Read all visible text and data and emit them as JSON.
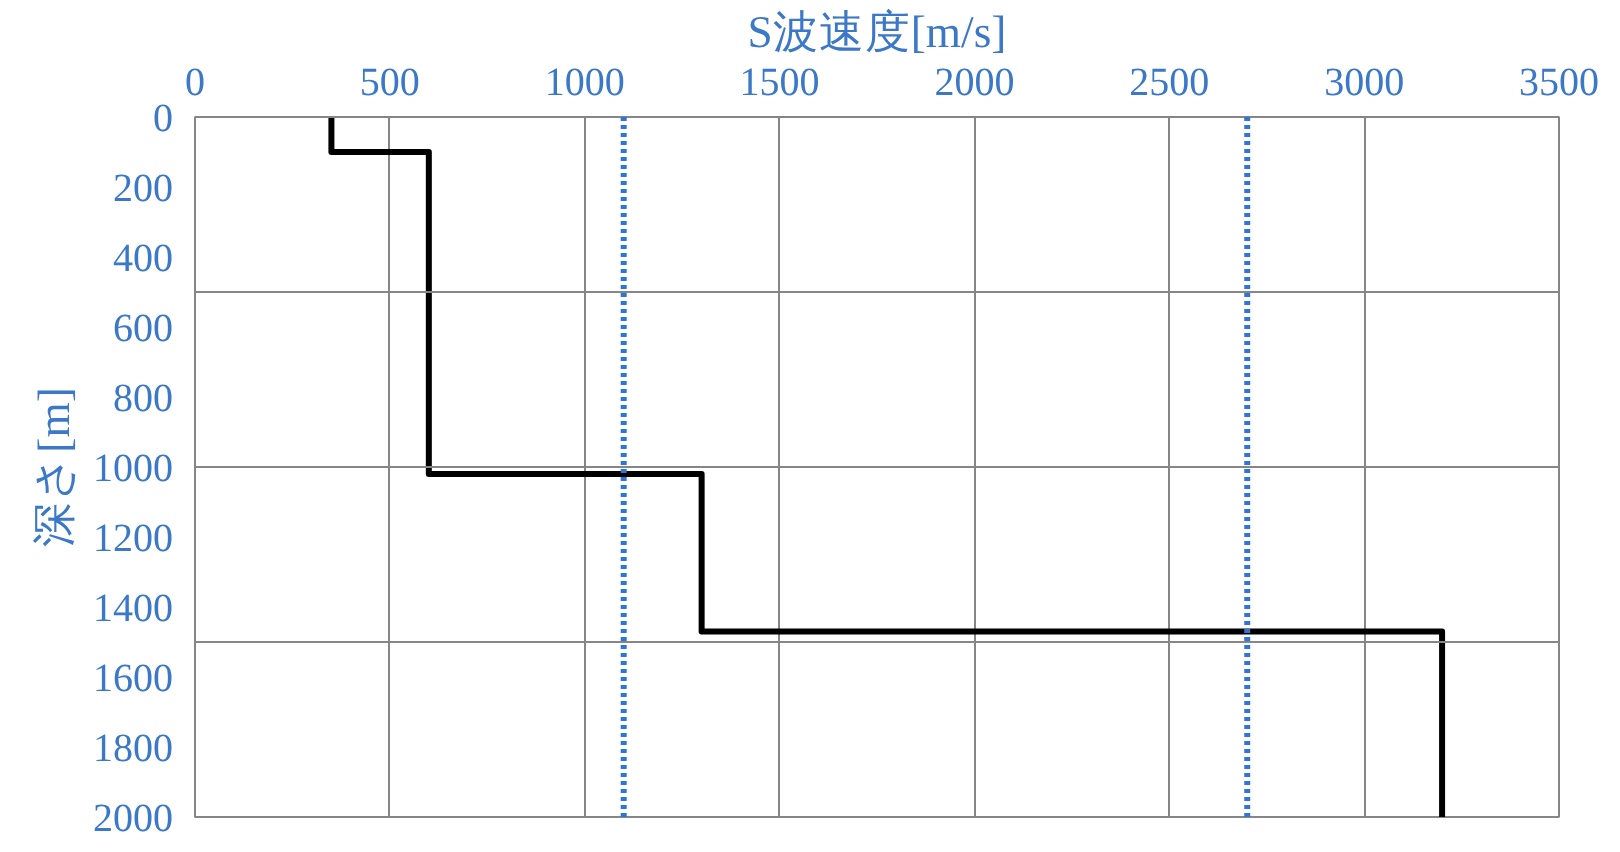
{
  "chart_data": {
    "type": "line",
    "xlabel": "S波速度[m/s]",
    "ylabel": "深さ[m]",
    "series": [
      {
        "color": "#000000",
        "x": [
          350,
          350,
          600,
          600,
          1300,
          1300,
          3200,
          3200
        ],
        "values": [
          0,
          100,
          100,
          1020,
          1020,
          1470,
          1470,
          2000
        ]
      }
    ],
    "xlim": [
      0,
      3500
    ],
    "xticks": [
      0,
      500,
      1000,
      1500,
      2000,
      2500,
      3000,
      3500
    ],
    "ylim": [
      2000,
      0
    ],
    "yticks": [
      0,
      200,
      400,
      600,
      800,
      1000,
      1200,
      1400,
      1600,
      1800,
      2000
    ],
    "grid": "x",
    "marker": "none",
    "line_style": "solid",
    "ref_lines": [
      {
        "axis": "y",
        "value": 500,
        "color": "#868686",
        "line_style": "solid"
      },
      {
        "axis": "y",
        "value": 1000,
        "color": "#868686",
        "line_style": "solid"
      },
      {
        "axis": "y",
        "value": 1500,
        "color": "#868686",
        "line_style": "solid"
      },
      {
        "axis": "x",
        "value": 1100,
        "color": "#2e75d6",
        "line_style": "dotted"
      },
      {
        "axis": "x",
        "value": 2700,
        "color": "#2e75d6",
        "line_style": "dotted"
      }
    ]
  }
}
